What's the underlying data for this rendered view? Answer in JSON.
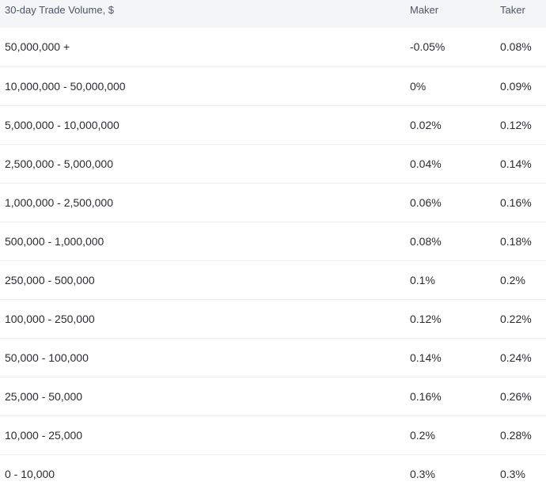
{
  "table": {
    "headers": {
      "volume": "30-day Trade Volume, $",
      "maker": "Maker",
      "taker": "Taker"
    },
    "rows": [
      {
        "volume": "50,000,000 +",
        "maker": "-0.05%",
        "taker": "0.08%"
      },
      {
        "volume": "10,000,000 - 50,000,000",
        "maker": "0%",
        "taker": "0.09%"
      },
      {
        "volume": "5,000,000 - 10,000,000",
        "maker": "0.02%",
        "taker": "0.12%"
      },
      {
        "volume": "2,500,000 - 5,000,000",
        "maker": "0.04%",
        "taker": "0.14%"
      },
      {
        "volume": "1,000,000 - 2,500,000",
        "maker": "0.06%",
        "taker": "0.16%"
      },
      {
        "volume": "500,000 - 1,000,000",
        "maker": "0.08%",
        "taker": "0.18%"
      },
      {
        "volume": "250,000 - 500,000",
        "maker": "0.1%",
        "taker": "0.2%"
      },
      {
        "volume": "100,000 - 250,000",
        "maker": "0.12%",
        "taker": "0.22%"
      },
      {
        "volume": "50,000 - 100,000",
        "maker": "0.14%",
        "taker": "0.24%"
      },
      {
        "volume": "25,000 - 50,000",
        "maker": "0.16%",
        "taker": "0.26%"
      },
      {
        "volume": "10,000 - 25,000",
        "maker": "0.2%",
        "taker": "0.28%"
      },
      {
        "volume": "0 - 10,000",
        "maker": "0.3%",
        "taker": "0.3%"
      }
    ]
  }
}
